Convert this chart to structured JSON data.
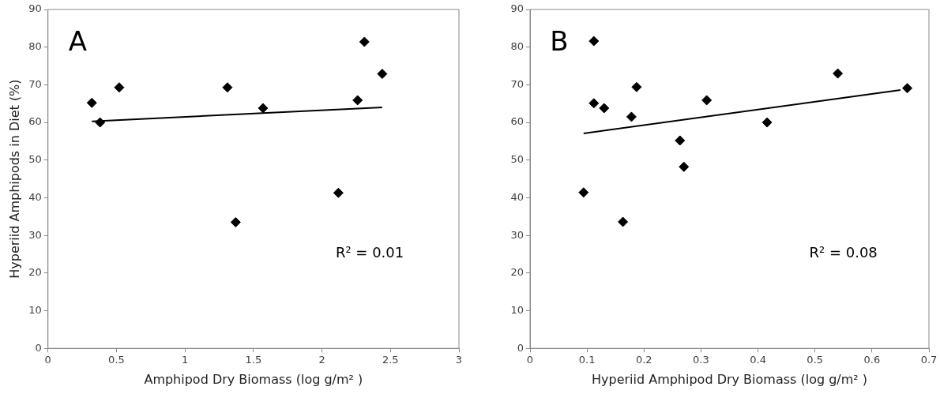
{
  "chart_data": [
    {
      "type": "scatter",
      "xlabel": "Amphipod Dry Biomass (log g/m² )",
      "ylabel": "Hyperiid Amphipods in Diet (%)",
      "annotations": [
        "A",
        "R² = 0.01"
      ],
      "xlim": [
        0,
        3
      ],
      "xticks": [
        0,
        0.5,
        1,
        1.5,
        2,
        2.5,
        3
      ],
      "ylim": [
        0,
        90
      ],
      "yticks": [
        0,
        10,
        20,
        30,
        40,
        50,
        60,
        70,
        80,
        90
      ],
      "grid": false,
      "legend": false,
      "marker": "diamond",
      "series": [
        {
          "color": "#000000",
          "x": [
            0.32,
            0.38,
            0.52,
            1.31,
            1.37,
            1.57,
            2.12,
            2.26,
            2.31,
            2.44
          ],
          "values": [
            65.2,
            60,
            69.3,
            69.3,
            33.5,
            63.8,
            41.3,
            65.9,
            81.4,
            72.9
          ]
        },
        {
          "type": "line",
          "marker": "none",
          "line_style": "solid",
          "color": "#000000",
          "x": [
            0.32,
            2.44
          ],
          "values": [
            60.3,
            64
          ]
        }
      ]
    },
    {
      "type": "scatter",
      "xlabel": "Hyperiid Amphipod Dry Biomass (log g/m² )",
      "annotations": [
        "B",
        "R² = 0.08"
      ],
      "xlim": [
        0,
        0.7
      ],
      "xticks": [
        0,
        0.1,
        0.2,
        0.3,
        0.4,
        0.5,
        0.6,
        0.7
      ],
      "ylim": [
        0,
        90
      ],
      "yticks": [
        0,
        10,
        20,
        30,
        40,
        50,
        60,
        70,
        80,
        90
      ],
      "grid": false,
      "legend": false,
      "marker": "diamond",
      "series": [
        {
          "color": "#000000",
          "x": [
            0.094,
            0.112,
            0.112,
            0.13,
            0.163,
            0.178,
            0.187,
            0.263,
            0.27,
            0.31,
            0.416,
            0.54,
            0.662
          ],
          "values": [
            41.4,
            81.6,
            65.1,
            63.8,
            33.6,
            61.5,
            69.4,
            55.2,
            48.2,
            65.9,
            60,
            73,
            69.1
          ]
        },
        {
          "type": "line",
          "marker": "none",
          "line_style": "solid",
          "color": "#000000",
          "x": [
            0.094,
            0.65
          ],
          "values": [
            57.1,
            68.6
          ]
        }
      ]
    }
  ]
}
